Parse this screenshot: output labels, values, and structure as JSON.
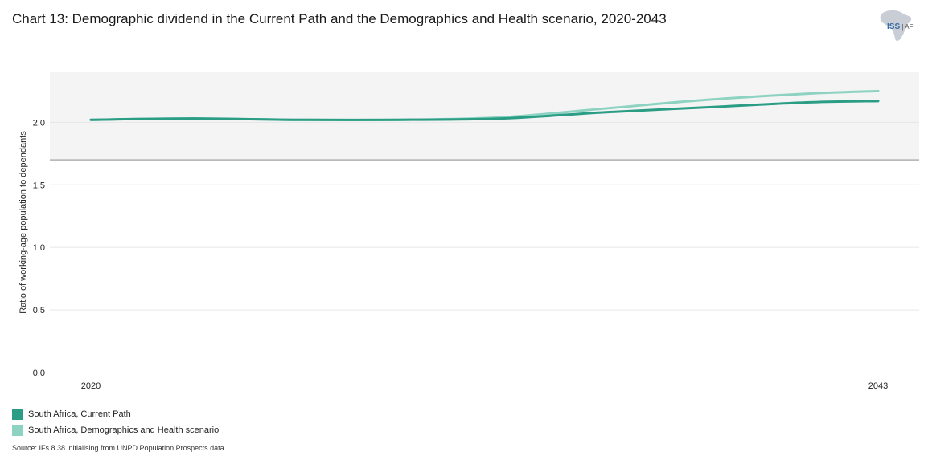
{
  "title": "Chart 13: Demographic dividend in the Current Path and the Demographics and Health scenario, 2020-2043",
  "logo": {
    "main": "ISS",
    "sub": "AFI"
  },
  "source": "Source: IFs 8.38 initialising from UNPD Population Prospects data",
  "colors": {
    "current_path": "#2a9d84",
    "scenario": "#8ed3c2",
    "band": "#f4f4f4",
    "reference_line": "#b0b0b0",
    "grid": "#e6e6e6"
  },
  "chart_data": {
    "type": "line",
    "title": "Chart 13: Demographic dividend in the Current Path and the Demographics and Health scenario, 2020-2043",
    "xlabel": "",
    "ylabel": "Ratio of working-age population to dependants",
    "x": [
      2020,
      2023,
      2026,
      2029,
      2032,
      2035,
      2038,
      2041,
      2043
    ],
    "x_tick_labels": [
      "2020",
      "2043"
    ],
    "ylim": [
      0,
      2.4
    ],
    "y_ticks": [
      0.0,
      0.5,
      1.0,
      1.5,
      2.0
    ],
    "y_tick_labels": [
      "0.0",
      "0.5",
      "1.0",
      "1.5",
      "2.0"
    ],
    "shaded_band": [
      1.7,
      2.4
    ],
    "reference_line": 1.7,
    "grid": true,
    "legend_position": "bottom-left",
    "series": [
      {
        "name": "South Africa, Current Path",
        "values": [
          2.02,
          2.03,
          2.02,
          2.02,
          2.03,
          2.08,
          2.12,
          2.16,
          2.17
        ]
      },
      {
        "name": "South Africa, Demographics and Health scenario",
        "values": [
          2.02,
          2.03,
          2.02,
          2.02,
          2.04,
          2.11,
          2.18,
          2.23,
          2.25
        ]
      }
    ]
  }
}
